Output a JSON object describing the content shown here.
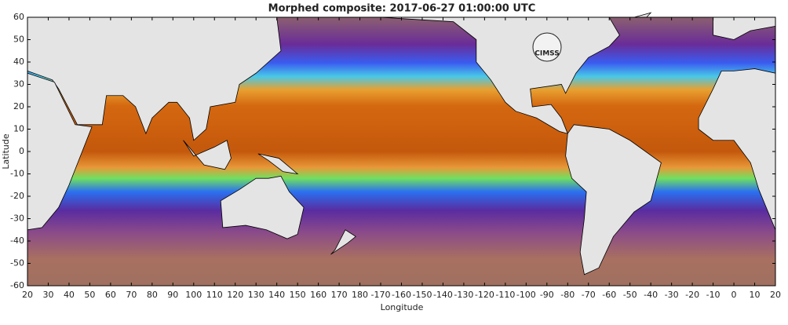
{
  "chart_data": {
    "type": "map",
    "title": "Morphed composite: 2017-06-27 01:00:00 UTC",
    "x_label": "Longitude",
    "y_label": "Latitude",
    "logo": "CIMSS",
    "xlim": [
      20,
      380
    ],
    "ylim": [
      -60,
      60
    ],
    "xticks": [
      20,
      30,
      40,
      50,
      60,
      70,
      80,
      90,
      100,
      110,
      120,
      130,
      140,
      150,
      160,
      170,
      180,
      {
        "value": 190,
        "label": "-170"
      },
      {
        "value": 200,
        "label": "-160"
      },
      {
        "value": 210,
        "label": "-150"
      },
      {
        "value": 220,
        "label": "-140"
      },
      {
        "value": 230,
        "label": "-130"
      },
      {
        "value": 240,
        "label": "-120"
      },
      {
        "value": 250,
        "label": "-110"
      },
      {
        "value": 260,
        "label": "-100"
      },
      {
        "value": 270,
        "label": "-90"
      },
      {
        "value": 280,
        "label": "-80"
      },
      {
        "value": 290,
        "label": "-70"
      },
      {
        "value": 300,
        "label": "-60"
      },
      {
        "value": 310,
        "label": "-50"
      },
      {
        "value": 320,
        "label": "-40"
      },
      {
        "value": 330,
        "label": "-30"
      },
      {
        "value": 340,
        "label": "-20"
      },
      {
        "value": 350,
        "label": "-10"
      },
      {
        "value": 360,
        "label": "0"
      },
      {
        "value": 370,
        "label": "10"
      },
      {
        "value": 380,
        "label": "20"
      }
    ],
    "yticks": [
      -60,
      -50,
      -40,
      -30,
      -20,
      -10,
      0,
      10,
      20,
      30,
      40,
      50,
      60
    ]
  }
}
